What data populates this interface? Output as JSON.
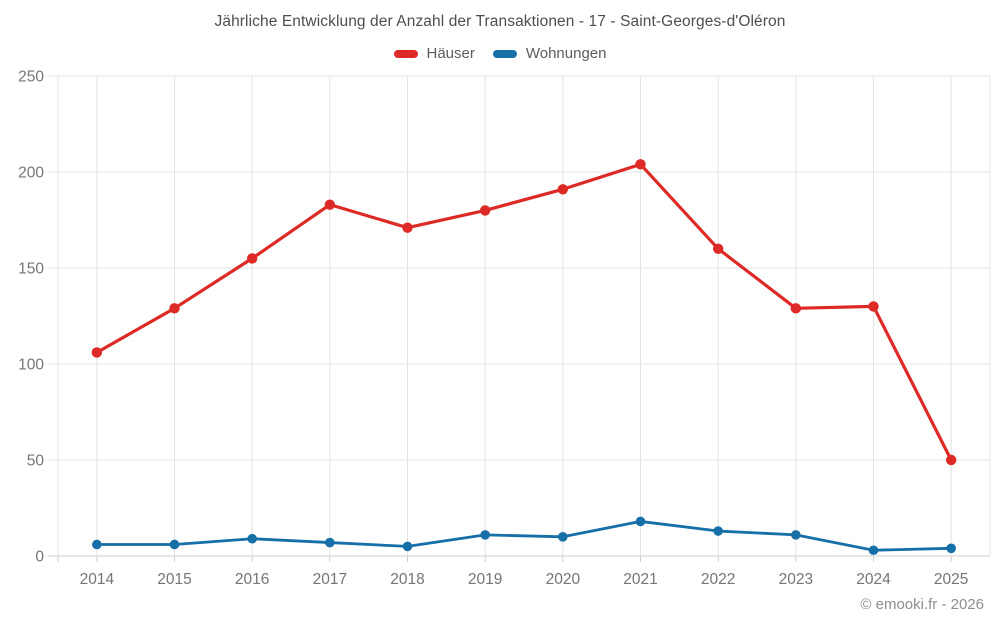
{
  "chart_data": {
    "type": "line",
    "title": "Jährliche Entwicklung der Anzahl der Transaktionen - 17 - Saint-Georges-d'Oléron",
    "categories": [
      "2014",
      "2015",
      "2016",
      "2017",
      "2018",
      "2019",
      "2020",
      "2021",
      "2022",
      "2023",
      "2024",
      "2025"
    ],
    "series": [
      {
        "name": "Häuser",
        "color": "#de2a26",
        "values": [
          106,
          129,
          155,
          183,
          171,
          180,
          191,
          204,
          160,
          129,
          130,
          50
        ]
      },
      {
        "name": "Wohnungen",
        "color": "#166fa7",
        "values": [
          6,
          6,
          9,
          7,
          5,
          11,
          10,
          18,
          13,
          11,
          3,
          4
        ]
      }
    ],
    "xlabel": "",
    "ylabel": "",
    "ylim": [
      0,
      250
    ],
    "yticks": [
      0,
      50,
      100,
      150,
      200,
      250
    ],
    "grid": true,
    "legend_position": "top"
  },
  "footer": {
    "watermark": "© emooki.fr - 2026"
  },
  "style": {
    "grid_color": "#e3e3e3",
    "axis_color": "#cfcfcf",
    "tick_label_color": "#757575"
  }
}
